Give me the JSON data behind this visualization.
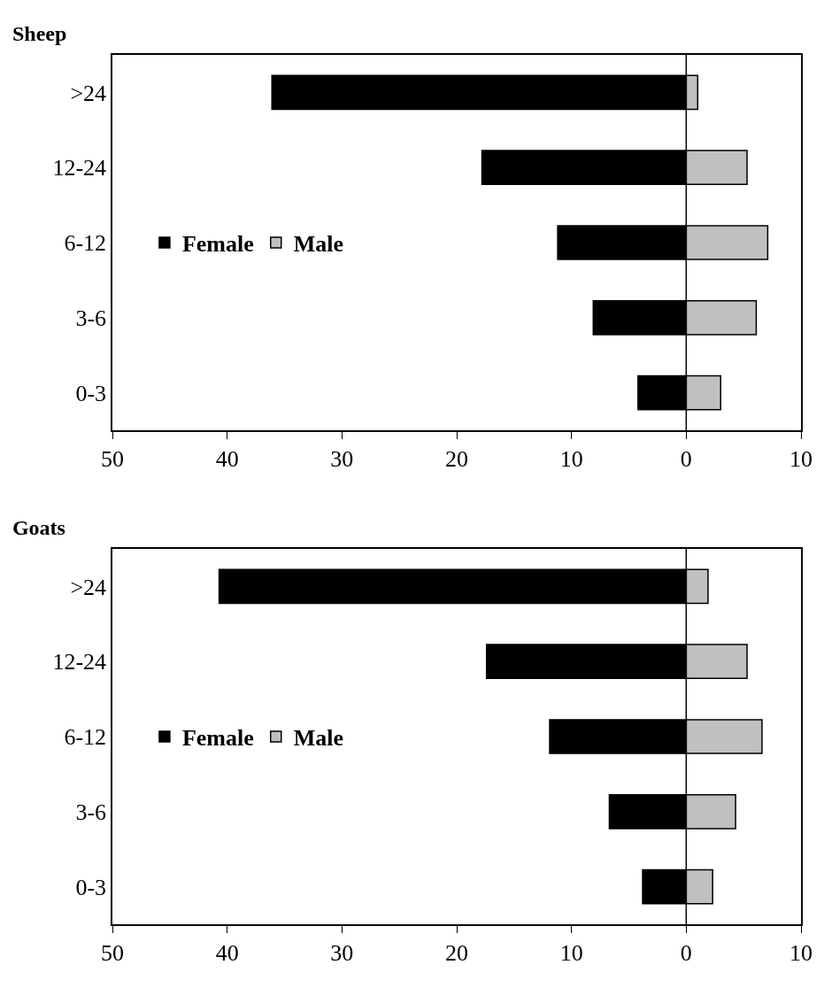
{
  "chart_data": [
    {
      "type": "bar",
      "title": "Sheep",
      "orientation": "horizontal",
      "stacked": true,
      "ref_lines": [
        {
          "axis": "x",
          "value": 0,
          "color": "#000000"
        }
      ],
      "categories": [
        ">24",
        "12-24",
        "6-12",
        "3-6",
        "0-3"
      ],
      "xticks": [
        {
          "value": -50,
          "label": "50"
        },
        {
          "value": -40,
          "label": "40"
        },
        {
          "value": -30,
          "label": "30"
        },
        {
          "value": -20,
          "label": "20"
        },
        {
          "value": -10,
          "label": "10"
        },
        {
          "value": 0,
          "label": "0"
        },
        {
          "value": 10,
          "label": "10"
        }
      ],
      "series": [
        {
          "name": "Female",
          "color": "#000000",
          "values": [
            -36.1,
            -17.8,
            -11.2,
            -8.1,
            -4.2
          ]
        },
        {
          "name": "Male",
          "color": "#c0c0c0",
          "values": [
            1.0,
            5.3,
            7.1,
            6.1,
            3.0
          ]
        }
      ],
      "xlim": [
        -50,
        10
      ],
      "grid": false,
      "legend": "left"
    },
    {
      "type": "bar",
      "title": "Goats",
      "orientation": "horizontal",
      "stacked": true,
      "ref_lines": [
        {
          "axis": "x",
          "value": 0,
          "color": "#000000"
        }
      ],
      "categories": [
        ">24",
        "12-24",
        "6-12",
        "3-6",
        "0-3"
      ],
      "xticks": [
        {
          "value": -50,
          "label": "50"
        },
        {
          "value": -40,
          "label": "40"
        },
        {
          "value": -30,
          "label": "30"
        },
        {
          "value": -20,
          "label": "20"
        },
        {
          "value": -10,
          "label": "10"
        },
        {
          "value": 0,
          "label": "0"
        },
        {
          "value": 10,
          "label": "10"
        }
      ],
      "series": [
        {
          "name": "Female",
          "color": "#000000",
          "values": [
            -40.7,
            -17.4,
            -11.9,
            -6.7,
            -3.8
          ]
        },
        {
          "name": "Male",
          "color": "#c0c0c0",
          "values": [
            1.9,
            5.3,
            6.6,
            4.3,
            2.3
          ]
        }
      ],
      "xlim": [
        -50,
        10
      ],
      "grid": false,
      "legend": "left"
    }
  ]
}
